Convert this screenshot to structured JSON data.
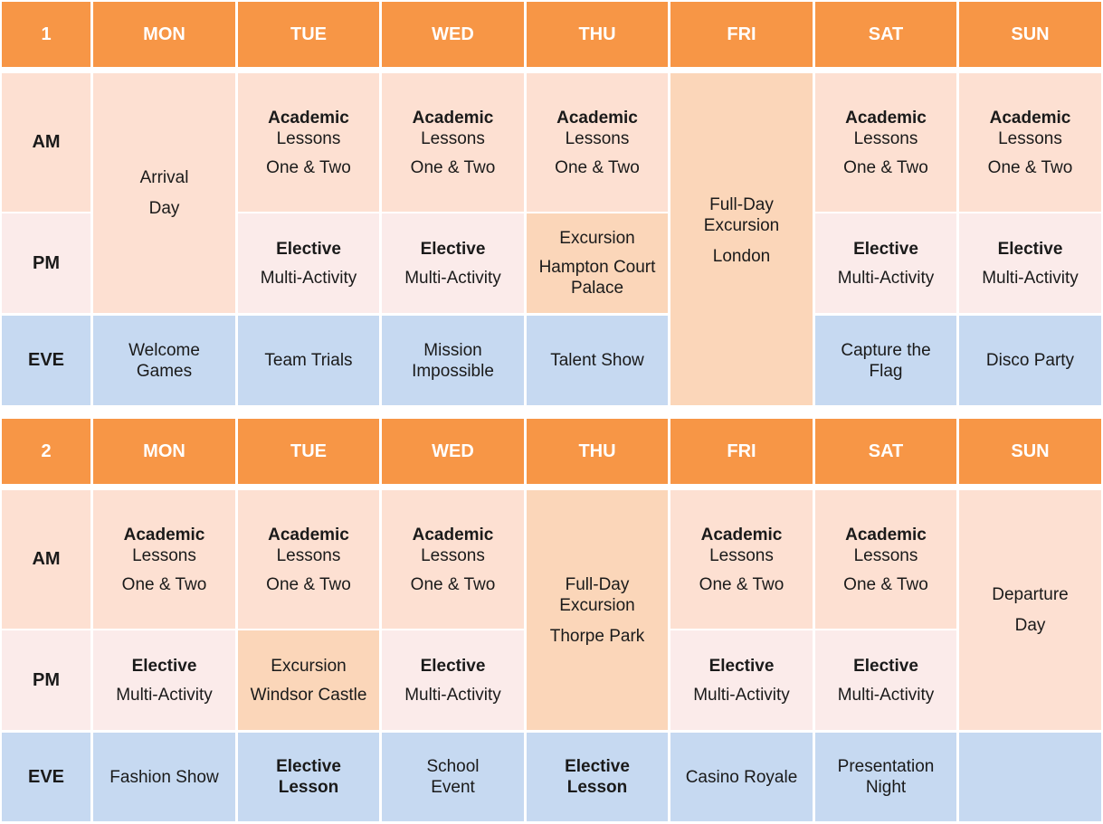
{
  "weeks": [
    {
      "number": "1",
      "days": [
        "MON",
        "TUE",
        "WED",
        "THU",
        "FRI",
        "SAT",
        "SUN"
      ],
      "row_labels": {
        "am": "AM",
        "pm": "PM",
        "eve": "EVE"
      },
      "academic": {
        "title": "Academic",
        "line1": "Lessons",
        "line2": "One & Two"
      },
      "elective": {
        "title": "Elective",
        "line1": "Multi-Activity"
      },
      "arrival": {
        "line1": "Arrival",
        "line2": "Day"
      },
      "thu_pm": {
        "line1": "Excursion",
        "line2": "Hampton Court",
        "line3": "Palace"
      },
      "fri_full": {
        "line1": "Full-Day",
        "line2": "Excursion",
        "line3": "London"
      },
      "eve": {
        "mon": [
          "Welcome",
          "Games"
        ],
        "tue": "Team Trials",
        "wed": [
          "Mission",
          "Impossible"
        ],
        "thu": "Talent Show",
        "sat": [
          "Capture the",
          "Flag"
        ],
        "sun": "Disco Party"
      }
    },
    {
      "number": "2",
      "days": [
        "MON",
        "TUE",
        "WED",
        "THU",
        "FRI",
        "SAT",
        "SUN"
      ],
      "row_labels": {
        "am": "AM",
        "pm": "PM",
        "eve": "EVE"
      },
      "academic": {
        "title": "Academic",
        "line1": "Lessons",
        "line2": "One & Two"
      },
      "elective": {
        "title": "Elective",
        "line1": "Multi-Activity"
      },
      "thu_full": {
        "line1": "Full-Day",
        "line2": "Excursion",
        "line3": "Thorpe Park"
      },
      "tue_pm": {
        "line1": "Excursion",
        "line2": "Windsor Castle"
      },
      "departure": {
        "line1": "Departure",
        "line2": "Day"
      },
      "eve": {
        "mon": "Fashion Show",
        "tue": [
          "Elective",
          "Lesson"
        ],
        "wed": [
          "School",
          "Event"
        ],
        "thu": [
          "Elective",
          "Lesson"
        ],
        "fri": "Casino Royale",
        "sat": [
          "Presentation",
          "Night"
        ],
        "sun": ""
      }
    }
  ],
  "colors": {
    "header": "#f79646",
    "am": "#fde0d2",
    "pm": "#fbebea",
    "evening": "#c6d9f1",
    "excursion": "#fbd6b9"
  }
}
